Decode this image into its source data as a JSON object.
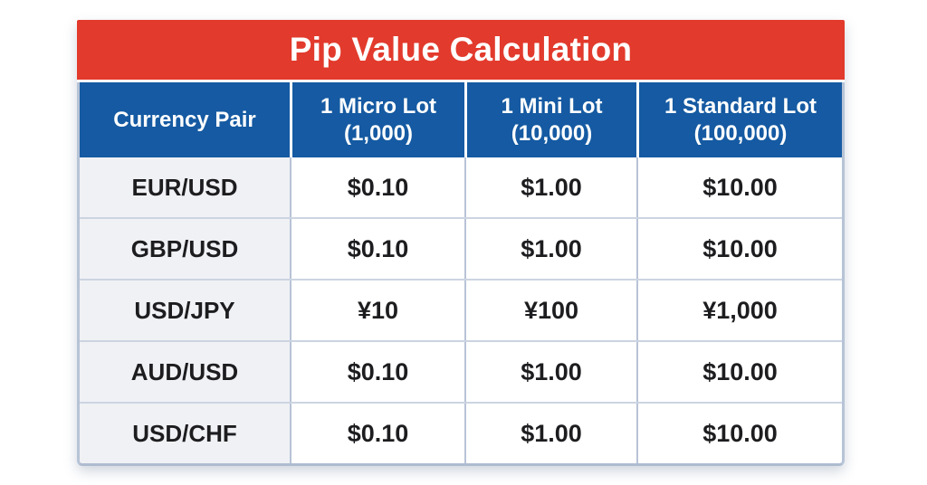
{
  "chart_data": {
    "type": "table",
    "title": "Pip Value Calculation",
    "columns": [
      "Currency Pair",
      "1 Micro Lot (1,000)",
      "1 Mini Lot (10,000)",
      "1 Standard Lot (100,000)"
    ],
    "rows": [
      [
        "EUR/USD",
        "$0.10",
        "$1.00",
        "$10.00"
      ],
      [
        "GBP/USD",
        "$0.10",
        "$1.00",
        "$10.00"
      ],
      [
        "USD/JPY",
        "¥10",
        "¥100",
        "¥1,000"
      ],
      [
        "AUD/USD",
        "$0.10",
        "$1.00",
        "$10.00"
      ],
      [
        "USD/CHF",
        "$0.10",
        "$1.00",
        "$10.00"
      ]
    ]
  },
  "display": {
    "header_lines": [
      {
        "l1": "Currency Pair",
        "l2": ""
      },
      {
        "l1": "1 Micro Lot",
        "l2": "(1,000)"
      },
      {
        "l1": "1 Mini Lot",
        "l2": "(10,000)"
      },
      {
        "l1": "1 Standard Lot",
        "l2": "(100,000)"
      }
    ]
  },
  "colors": {
    "title_bar_red": "#e23a2c",
    "header_blue": "#155aa2",
    "grid_line": "#b7c3d6",
    "row_separator": "#ccd4e1",
    "pair_column_bg": "#f0f1f4",
    "value_cell_bg": "#ffffff",
    "text_dark": "#1d1d20",
    "text_light": "#ffffff"
  }
}
